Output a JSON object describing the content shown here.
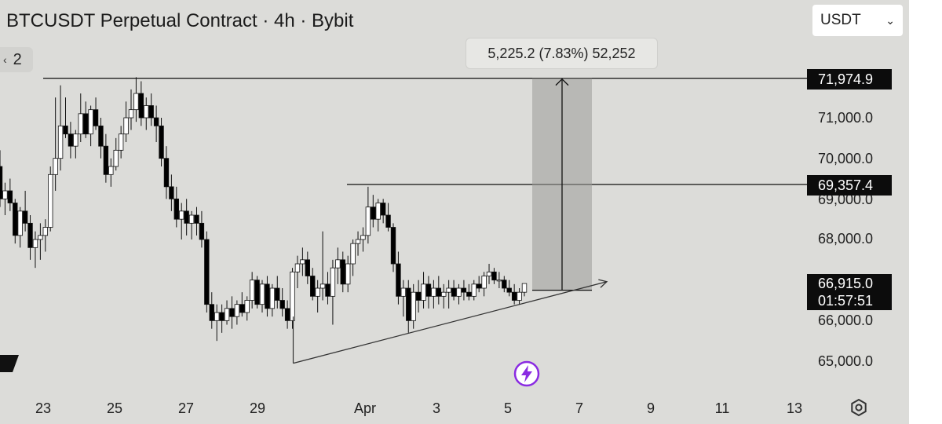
{
  "header": {
    "title": "BTCUSDT Perpetual Contract · 4h · Bybit",
    "indicator_count": "2",
    "currency": "USDT"
  },
  "measure": {
    "label": "5,225.2 (7.83%) 52,252",
    "from_price": 66749.7,
    "to_price": 71974.9
  },
  "price_axis": {
    "labels": [
      "71,000.0",
      "70,000.0",
      "69,000.0",
      "68,000.0",
      "66,000.0",
      "65,000.0"
    ],
    "tags": {
      "resistance": "71,974.9",
      "level": "69,357.4",
      "last": "66,915.0",
      "countdown": "01:57:51"
    }
  },
  "time_axis": {
    "labels": [
      "23",
      "25",
      "27",
      "29",
      "Apr",
      "3",
      "5",
      "7",
      "9",
      "11",
      "13"
    ]
  },
  "colors": {
    "background": "#dcdcd9",
    "candle_up": "#ffffff",
    "candle_down": "#000000",
    "measure_fill": "#9a9a98",
    "tag_bg": "#0c0c0c"
  },
  "chart_data": {
    "type": "candlestick",
    "symbol": "BTCUSDT",
    "interval": "4h",
    "ylim": [
      64500,
      72600
    ],
    "horizontal_lines": [
      71974.9,
      69357.4
    ],
    "trendline": {
      "from": [
        "Mar 30",
        64950
      ],
      "to": [
        "Apr 8",
        66960
      ]
    },
    "last_price": 66915.0,
    "candles": [
      [
        69800,
        70200,
        68800,
        69000
      ],
      [
        69000,
        69400,
        68600,
        69200
      ],
      [
        69200,
        69500,
        68700,
        68900
      ],
      [
        68900,
        69000,
        67900,
        68100
      ],
      [
        68100,
        68800,
        67800,
        68700
      ],
      [
        68700,
        69200,
        68200,
        68400
      ],
      [
        68400,
        68600,
        67500,
        67800
      ],
      [
        67800,
        68200,
        67300,
        68000
      ],
      [
        68000,
        68400,
        67500,
        68100
      ],
      [
        68100,
        68500,
        67700,
        68300
      ],
      [
        68300,
        69800,
        68200,
        69600
      ],
      [
        69600,
        71500,
        69200,
        70000
      ],
      [
        70000,
        71800,
        69700,
        70800
      ],
      [
        70800,
        71500,
        70500,
        70600
      ],
      [
        70600,
        70900,
        70000,
        70300
      ],
      [
        70300,
        70700,
        70000,
        70600
      ],
      [
        70600,
        71600,
        70400,
        71100
      ],
      [
        71100,
        71400,
        70500,
        70600
      ],
      [
        70600,
        71300,
        70300,
        71200
      ],
      [
        71200,
        71500,
        70700,
        70800
      ],
      [
        70800,
        71000,
        70000,
        70300
      ],
      [
        70300,
        70600,
        69400,
        69600
      ],
      [
        69600,
        70000,
        69300,
        69800
      ],
      [
        69800,
        70500,
        69700,
        70200
      ],
      [
        70200,
        70800,
        70000,
        70600
      ],
      [
        70600,
        71400,
        70400,
        71000
      ],
      [
        71000,
        71700,
        70700,
        71200
      ],
      [
        71200,
        72000,
        70900,
        71600
      ],
      [
        71600,
        71900,
        70800,
        71000
      ],
      [
        71000,
        71500,
        70700,
        71300
      ],
      [
        71300,
        71600,
        70800,
        71000
      ],
      [
        71000,
        71300,
        70400,
        70800
      ],
      [
        70800,
        71000,
        69800,
        70000
      ],
      [
        70000,
        70300,
        69000,
        69300
      ],
      [
        69300,
        69600,
        68700,
        69000
      ],
      [
        69000,
        69300,
        68300,
        68500
      ],
      [
        68500,
        68900,
        68000,
        68700
      ],
      [
        68700,
        69000,
        68100,
        68400
      ],
      [
        68400,
        68700,
        68000,
        68600
      ],
      [
        68600,
        68800,
        68100,
        68400
      ],
      [
        68400,
        68700,
        67800,
        68000
      ],
      [
        68000,
        68200,
        66200,
        66400
      ],
      [
        66400,
        66700,
        65800,
        66000
      ],
      [
        66000,
        66400,
        65500,
        66200
      ],
      [
        66200,
        66400,
        65700,
        66000
      ],
      [
        66000,
        66500,
        65900,
        66300
      ],
      [
        66300,
        66600,
        65800,
        66100
      ],
      [
        66100,
        66500,
        65900,
        66400
      ],
      [
        66400,
        66700,
        66100,
        66200
      ],
      [
        66200,
        66600,
        66000,
        66500
      ],
      [
        66500,
        67200,
        66300,
        67000
      ],
      [
        67000,
        67100,
        66300,
        66400
      ],
      [
        66400,
        67000,
        66200,
        66900
      ],
      [
        66900,
        67100,
        66100,
        66300
      ],
      [
        66300,
        66900,
        66100,
        66800
      ],
      [
        66800,
        67100,
        66300,
        66500
      ],
      [
        66500,
        66800,
        66100,
        66300
      ],
      [
        66300,
        66500,
        65800,
        66000
      ],
      [
        66000,
        67300,
        65800,
        67200
      ],
      [
        67200,
        67600,
        66800,
        67400
      ],
      [
        67400,
        67800,
        67100,
        67500
      ],
      [
        67500,
        67700,
        66900,
        67100
      ],
      [
        67100,
        67300,
        66500,
        66600
      ],
      [
        66600,
        67000,
        66200,
        66800
      ],
      [
        66800,
        68200,
        66500,
        66900
      ],
      [
        66900,
        67200,
        66400,
        66600
      ],
      [
        66600,
        67500,
        65900,
        67300
      ],
      [
        67300,
        67800,
        66900,
        67500
      ],
      [
        67500,
        67700,
        66700,
        66900
      ],
      [
        66900,
        67600,
        66700,
        67400
      ],
      [
        67400,
        68000,
        67100,
        67900
      ],
      [
        67900,
        68200,
        67600,
        68000
      ],
      [
        68000,
        68300,
        67700,
        68100
      ],
      [
        68100,
        69300,
        67900,
        68800
      ],
      [
        68800,
        69100,
        68300,
        68500
      ],
      [
        68500,
        69000,
        68200,
        68900
      ],
      [
        68900,
        69000,
        68400,
        68600
      ],
      [
        68600,
        68900,
        68200,
        68300
      ],
      [
        68300,
        68400,
        67200,
        67400
      ],
      [
        67400,
        67700,
        66400,
        66600
      ],
      [
        66600,
        67000,
        66100,
        66800
      ],
      [
        66800,
        67000,
        65700,
        66000
      ],
      [
        66000,
        66900,
        65800,
        66700
      ],
      [
        66700,
        67000,
        66200,
        66500
      ],
      [
        66500,
        67200,
        66300,
        66900
      ],
      [
        66900,
        67100,
        66300,
        66600
      ],
      [
        66600,
        67000,
        66300,
        66800
      ],
      [
        66800,
        67100,
        66400,
        66600
      ],
      [
        66600,
        66900,
        66300,
        66700
      ],
      [
        66700,
        67000,
        66300,
        66800
      ],
      [
        66800,
        67000,
        66500,
        66600
      ],
      [
        66600,
        66900,
        66400,
        66800
      ],
      [
        66800,
        67000,
        66500,
        66700
      ],
      [
        66700,
        66900,
        66500,
        66600
      ],
      [
        66600,
        67000,
        66500,
        66900
      ],
      [
        66900,
        67100,
        66700,
        66800
      ],
      [
        66800,
        67200,
        66600,
        67100
      ],
      [
        67100,
        67400,
        66900,
        67200
      ],
      [
        67200,
        67300,
        66900,
        67000
      ],
      [
        67000,
        67200,
        66800,
        67000
      ],
      [
        67000,
        67100,
        66700,
        66800
      ],
      [
        66800,
        67000,
        66600,
        66700
      ],
      [
        66700,
        66900,
        66400,
        66500
      ],
      [
        66500,
        66800,
        66400,
        66700
      ],
      [
        66700,
        66900,
        66600,
        66915
      ]
    ]
  }
}
